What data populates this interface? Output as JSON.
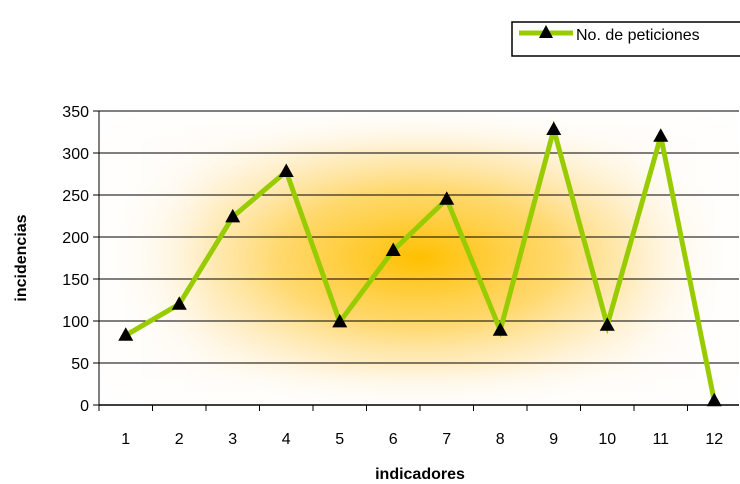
{
  "chart_data": {
    "type": "line",
    "title": "",
    "xlabel": "indicadores",
    "ylabel": "incidencias",
    "x": [
      "1",
      "2",
      "3",
      "4",
      "5",
      "6",
      "7",
      "8",
      "9",
      "10",
      "11",
      "12"
    ],
    "series": [
      {
        "name": "No. de peticiones",
        "values": [
          83,
          120,
          224,
          278,
          99,
          184,
          245,
          89,
          328,
          95,
          320,
          5
        ]
      }
    ],
    "ylim": [
      0,
      350
    ],
    "yticks": [
      "0",
      "50",
      "100",
      "150",
      "200",
      "250",
      "300",
      "350"
    ],
    "grid": true,
    "legend": "top-right",
    "colors": {
      "line": "#99cc00",
      "marker": "#000000",
      "plot_glow": "#ffc000",
      "grid": "#000000"
    }
  }
}
